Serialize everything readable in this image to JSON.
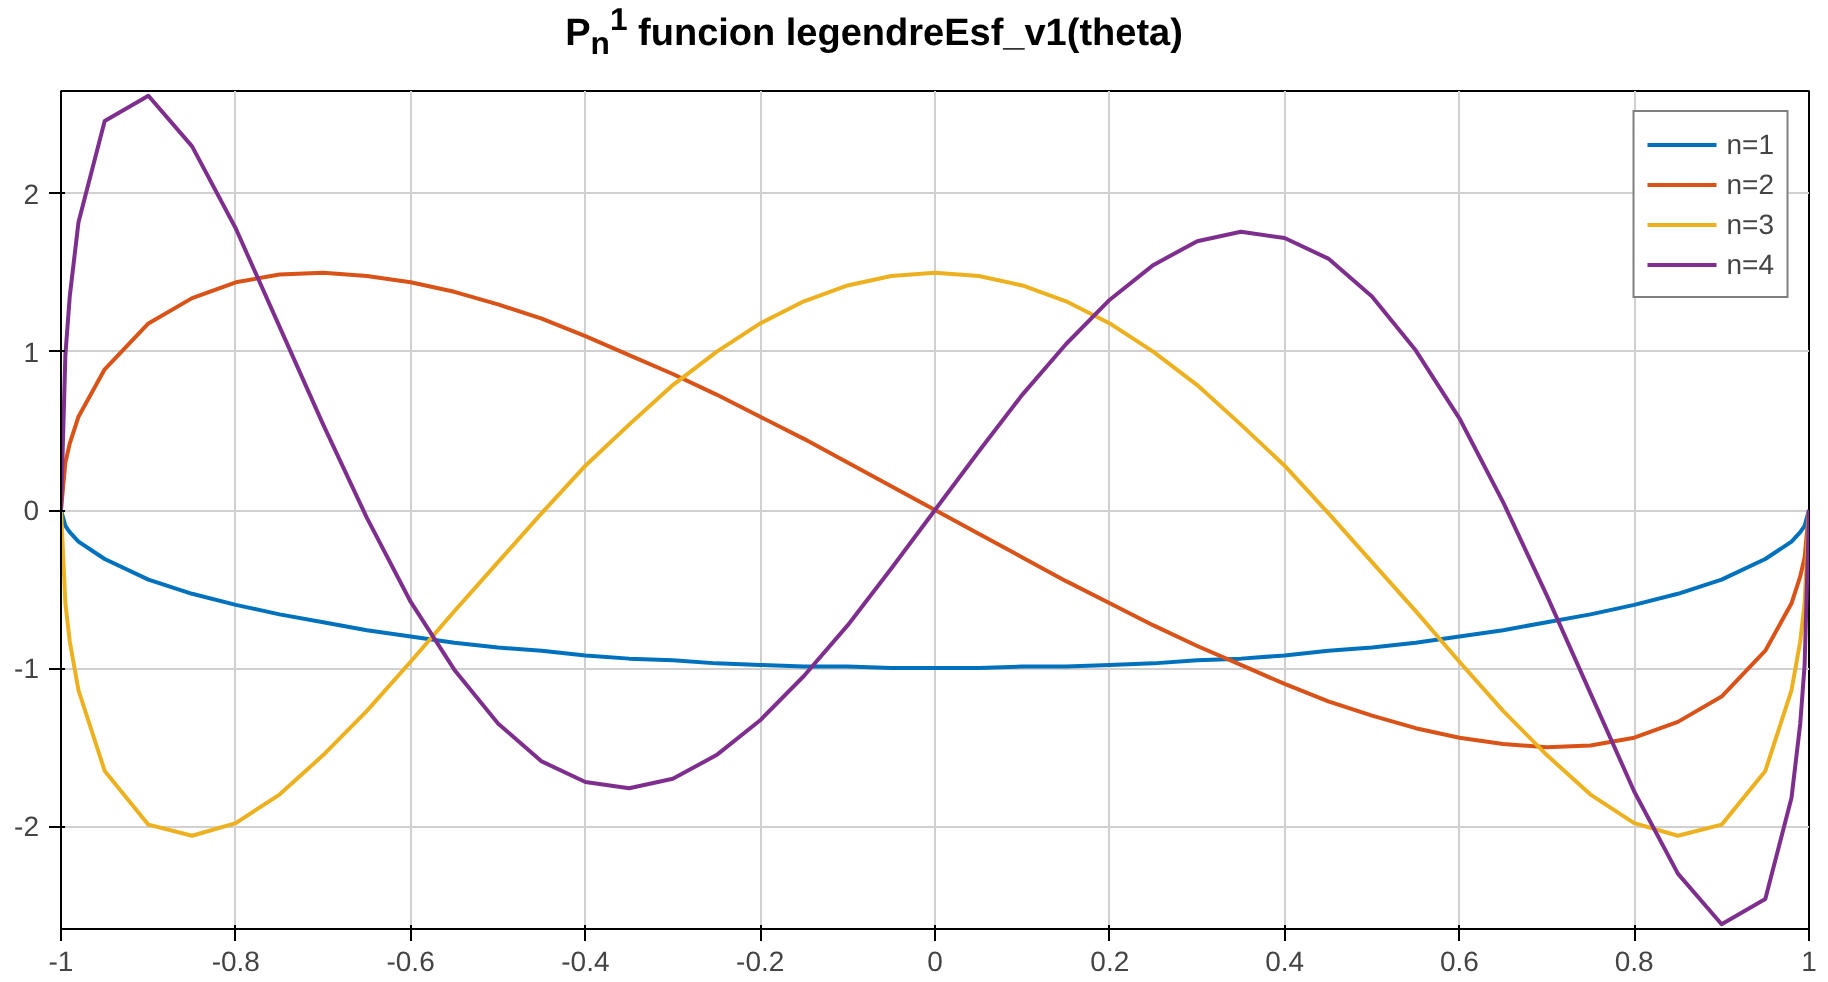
{
  "chart_data": {
    "type": "line",
    "title": "P$_{n}$$^{1}$ funcion legendreEsf_v1(theta)",
    "x": [
      -1,
      -0.995,
      -0.99,
      -0.98,
      -0.95,
      -0.9,
      -0.85,
      -0.8,
      -0.75,
      -0.7,
      -0.65,
      -0.6,
      -0.55,
      -0.5,
      -0.45,
      -0.4,
      -0.35,
      -0.3,
      -0.25,
      -0.2,
      -0.15,
      -0.1,
      -0.05,
      0,
      0.05,
      0.1,
      0.15,
      0.2,
      0.25,
      0.3,
      0.35,
      0.4,
      0.45,
      0.5,
      0.55,
      0.6,
      0.65,
      0.7,
      0.75,
      0.8,
      0.85,
      0.9,
      0.95,
      0.98,
      0.99,
      0.995,
      1
    ],
    "series": [
      {
        "name": "n=1",
        "color": "#0072bd",
        "values": [
          0,
          -0.1,
          -0.14,
          -0.2,
          -0.31,
          -0.44,
          -0.53,
          -0.6,
          -0.66,
          -0.71,
          -0.76,
          -0.8,
          -0.84,
          -0.87,
          -0.89,
          -0.92,
          -0.94,
          -0.95,
          -0.97,
          -0.98,
          -0.99,
          -0.99,
          -1,
          -1,
          -1,
          -0.99,
          -0.99,
          -0.98,
          -0.97,
          -0.95,
          -0.94,
          -0.92,
          -0.89,
          -0.87,
          -0.84,
          -0.8,
          -0.76,
          -0.71,
          -0.66,
          -0.6,
          -0.53,
          -0.44,
          -0.31,
          -0.2,
          -0.14,
          -0.1,
          0
        ]
      },
      {
        "name": "n=2",
        "color": "#d95319",
        "values": [
          0,
          0.3,
          0.42,
          0.59,
          0.89,
          1.18,
          1.34,
          1.44,
          1.49,
          1.5,
          1.48,
          1.44,
          1.38,
          1.3,
          1.21,
          1.1,
          0.98,
          0.86,
          0.73,
          0.59,
          0.45,
          0.3,
          0.15,
          0,
          -0.15,
          -0.3,
          -0.45,
          -0.59,
          -0.73,
          -0.86,
          -0.98,
          -1.1,
          -1.21,
          -1.3,
          -1.38,
          -1.44,
          -1.48,
          -1.5,
          -1.49,
          -1.44,
          -1.34,
          -1.18,
          -0.89,
          -0.59,
          -0.42,
          -0.3,
          0
        ]
      },
      {
        "name": "n=3",
        "color": "#edb120",
        "values": [
          0,
          -0.59,
          -0.83,
          -1.14,
          -1.65,
          -1.99,
          -2.06,
          -1.98,
          -1.8,
          -1.55,
          -1.27,
          -0.96,
          -0.64,
          -0.33,
          -0.02,
          0.28,
          0.54,
          0.79,
          1,
          1.18,
          1.32,
          1.42,
          1.48,
          1.5,
          1.48,
          1.42,
          1.32,
          1.18,
          1,
          0.79,
          0.54,
          0.28,
          -0.02,
          -0.33,
          -0.64,
          -0.96,
          -1.27,
          -1.55,
          -1.8,
          -1.98,
          -2.06,
          -1.99,
          -1.65,
          -1.14,
          -0.83,
          -0.59,
          0
        ]
      },
      {
        "name": "n=4",
        "color": "#7e2f8e",
        "values": [
          0,
          0.98,
          1.35,
          1.82,
          2.46,
          2.62,
          2.3,
          1.78,
          1.16,
          0.54,
          -0.05,
          -0.58,
          -1.01,
          -1.35,
          -1.59,
          -1.72,
          -1.76,
          -1.7,
          -1.55,
          -1.33,
          -1.05,
          -0.73,
          -0.37,
          0,
          0.37,
          0.73,
          1.05,
          1.33,
          1.55,
          1.7,
          1.76,
          1.72,
          1.59,
          1.35,
          1.01,
          0.58,
          0.05,
          -0.54,
          -1.16,
          -1.78,
          -2.3,
          -2.62,
          -2.46,
          -1.82,
          -1.35,
          -0.98,
          0
        ]
      }
    ],
    "xlim": [
      -1,
      1
    ],
    "ylim": [
      -2.65,
      2.65
    ],
    "xticks": [
      -1,
      -0.8,
      -0.6,
      -0.4,
      -0.2,
      0,
      0.2,
      0.4,
      0.6,
      0.8,
      1
    ],
    "yticks": [
      -2,
      -1,
      0,
      1,
      2
    ],
    "grid": true,
    "legend": "top right",
    "line_style": "solid",
    "marker": "none"
  }
}
